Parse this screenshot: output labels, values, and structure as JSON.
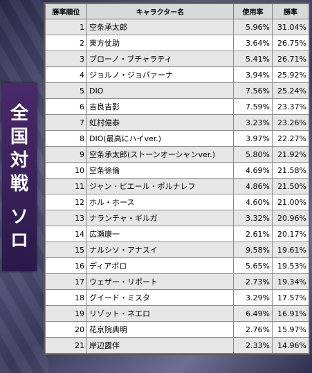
{
  "side_label": {
    "line1": [
      "全",
      "国",
      "対",
      "戦"
    ],
    "line2": [
      "ソ",
      "ロ"
    ]
  },
  "table": {
    "headers": {
      "rank": "勝率順位",
      "name": "キャラクター名",
      "usage": "使用率",
      "win": "勝率"
    },
    "rows": [
      {
        "rank": "1",
        "name": "空条承太郎",
        "usage": "5.96%",
        "win": "31.04%"
      },
      {
        "rank": "2",
        "name": "東方仗助",
        "usage": "3.64%",
        "win": "26.75%"
      },
      {
        "rank": "3",
        "name": "ブローノ・ブチャラティ",
        "usage": "5.41%",
        "win": "26.71%"
      },
      {
        "rank": "4",
        "name": "ジョルノ・ジョバァーナ",
        "usage": "3.94%",
        "win": "25.92%"
      },
      {
        "rank": "5",
        "name": "DIO",
        "usage": "7.56%",
        "win": "25.24%"
      },
      {
        "rank": "6",
        "name": "吉良吉影",
        "usage": "7.59%",
        "win": "23.37%"
      },
      {
        "rank": "7",
        "name": "虹村億泰",
        "usage": "3.23%",
        "win": "23.26%"
      },
      {
        "rank": "8",
        "name": "DIO(最高にハイver.)",
        "usage": "3.97%",
        "win": "22.27%"
      },
      {
        "rank": "9",
        "name": "空条承太郎(ストーンオーシャンver.)",
        "usage": "5.80%",
        "win": "21.92%"
      },
      {
        "rank": "10",
        "name": "空条徐倫",
        "usage": "4.69%",
        "win": "21.58%"
      },
      {
        "rank": "11",
        "name": "ジャン・ピエール・ポルナレフ",
        "usage": "4.86%",
        "win": "21.50%"
      },
      {
        "rank": "12",
        "name": "ホル・ホース",
        "usage": "4.60%",
        "win": "21.00%"
      },
      {
        "rank": "13",
        "name": "ナランチャ・ギルガ",
        "usage": "3.32%",
        "win": "20.96%"
      },
      {
        "rank": "14",
        "name": "広瀬康一",
        "usage": "2.61%",
        "win": "20.17%"
      },
      {
        "rank": "15",
        "name": "ナルシソ・アナスイ",
        "usage": "9.58%",
        "win": "19.61%"
      },
      {
        "rank": "16",
        "name": "ディアボロ",
        "usage": "5.65%",
        "win": "19.53%"
      },
      {
        "rank": "17",
        "name": "ウェザー・リポート",
        "usage": "2.73%",
        "win": "19.34%"
      },
      {
        "rank": "18",
        "name": "グイード・ミスタ",
        "usage": "3.29%",
        "win": "17.57%"
      },
      {
        "rank": "19",
        "name": "リゾット・ネエロ",
        "usage": "6.49%",
        "win": "16.91%"
      },
      {
        "rank": "20",
        "name": "花京院典明",
        "usage": "2.76%",
        "win": "15.97%"
      },
      {
        "rank": "21",
        "name": "岸辺露伴",
        "usage": "2.33%",
        "win": "14.96%"
      }
    ]
  }
}
